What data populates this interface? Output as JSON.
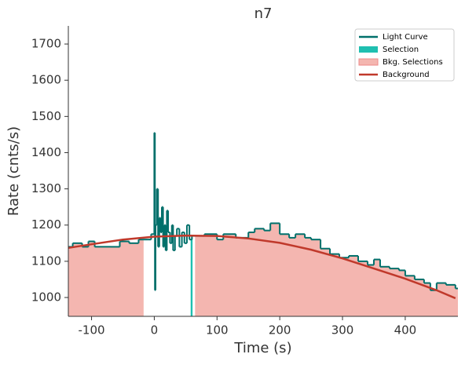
{
  "chart_data": {
    "type": "step",
    "title": "n7",
    "x_label": "Time (s)",
    "y_label": "Rate (cnts/s)",
    "xlim": [
      -137,
      484
    ],
    "ylim": [
      948,
      1750
    ],
    "xticks": [
      -100,
      0,
      100,
      200,
      300,
      400
    ],
    "yticks": [
      1000,
      1100,
      1200,
      1300,
      1400,
      1500,
      1600,
      1700
    ],
    "legend": "upper right",
    "series": [
      {
        "name": "Light Curve",
        "color": "#00706b",
        "x": [
          -137,
          -130,
          -115,
          -105,
          -95,
          -70,
          -55,
          -40,
          -25,
          -10,
          -5,
          0,
          1,
          2,
          4,
          6,
          8,
          10,
          12,
          14,
          16,
          18,
          20,
          22,
          25,
          28,
          30,
          33,
          36,
          40,
          44,
          48,
          52,
          56,
          60,
          64,
          80,
          100,
          110,
          130,
          150,
          160,
          175,
          185,
          200,
          215,
          225,
          240,
          250,
          265,
          280,
          295,
          310,
          325,
          340,
          350,
          360,
          375,
          390,
          400,
          415,
          430,
          440,
          450,
          465,
          480
        ],
        "values": [
          1140,
          1150,
          1140,
          1155,
          1140,
          1140,
          1155,
          1150,
          1160,
          1160,
          1175,
          1455,
          1020,
          1200,
          1300,
          1140,
          1220,
          1180,
          1250,
          1140,
          1200,
          1130,
          1240,
          1180,
          1150,
          1200,
          1130,
          1170,
          1190,
          1140,
          1180,
          1150,
          1200,
          1160,
          1170,
          1170,
          1175,
          1160,
          1175,
          1165,
          1180,
          1190,
          1185,
          1205,
          1175,
          1165,
          1175,
          1165,
          1160,
          1135,
          1120,
          1110,
          1115,
          1100,
          1090,
          1105,
          1085,
          1080,
          1075,
          1060,
          1050,
          1040,
          1020,
          1040,
          1035,
          1025
        ]
      },
      {
        "name": "Selection",
        "color": "#1fbfb0",
        "intervals": [
          [
            58,
            61
          ]
        ]
      },
      {
        "name": "Bkg. Selections",
        "color": "#f4b6b0",
        "intervals": [
          [
            -137,
            -17
          ],
          [
            65,
            484
          ]
        ]
      },
      {
        "name": "Background",
        "color": "#c0392b",
        "x": [
          -137,
          -100,
          -50,
          0,
          50,
          100,
          150,
          200,
          250,
          300,
          350,
          400,
          450,
          480
        ],
        "values": [
          1137,
          1147,
          1160,
          1168,
          1171,
          1170,
          1163,
          1151,
          1132,
          1108,
          1080,
          1052,
          1020,
          998
        ]
      }
    ]
  }
}
